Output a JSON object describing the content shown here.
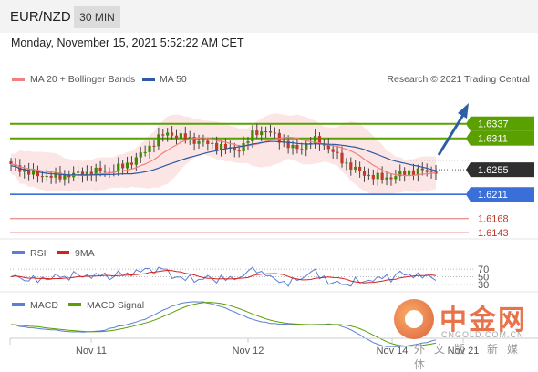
{
  "header": {
    "symbol": "EUR/NZD",
    "timeframe": "30 MIN"
  },
  "datetime": "Monday, November 15, 2021 5:52:22 AM CET",
  "legend": {
    "ma20_label": "MA 20 + Bollinger Bands",
    "ma50_label": "MA 50",
    "credit": "Research © 2021 Trading Central"
  },
  "rsi_legend": {
    "rsi_label": "RSI",
    "ma_label": "9MA"
  },
  "macd_legend": {
    "macd_label": "MACD",
    "signal_label": "MACD Signal"
  },
  "watermark": {
    "name": "中金网",
    "url": "CNGOLD.COM.CN",
    "sub": "外文版·新媒体"
  },
  "colors": {
    "green": "#5aa000",
    "blue": "#3a6fd8",
    "red": "#d62020",
    "dark": "#2f2f2f",
    "arrow": "#2e5fa3"
  },
  "chart_data": {
    "type": "candlestick",
    "x_ticks": [
      "Nov 11",
      "Nov 12",
      "Nov 14",
      "Nov 21"
    ],
    "current_price": "1.6255",
    "levels": [
      {
        "value": "1.6337",
        "style": "resistance"
      },
      {
        "value": "1.6311",
        "style": "resistance"
      },
      {
        "value": "1.6211",
        "style": "support"
      },
      {
        "value": "1.6168",
        "style": "support"
      },
      {
        "value": "1.6143",
        "style": "support"
      }
    ],
    "ylim": [
      1.6135,
      1.6395
    ],
    "price_path": [
      1.6262,
      1.6258,
      1.625,
      1.6246,
      1.6244,
      1.6242,
      1.6244,
      1.6246,
      1.6248,
      1.625,
      1.6252,
      1.6254,
      1.6256,
      1.6262,
      1.627,
      1.6282,
      1.6296,
      1.6312,
      1.632,
      1.6316,
      1.6312,
      1.6308,
      1.6304,
      1.63,
      1.6298,
      1.6292,
      1.629,
      1.63,
      1.6322,
      1.6324,
      1.632,
      1.631,
      1.6296,
      1.6292,
      1.63,
      1.6308,
      1.6302,
      1.6288,
      1.6274,
      1.6262,
      1.6252,
      1.6246,
      1.6242,
      1.624,
      1.6242,
      1.6248,
      1.6252,
      1.6253,
      1.6252,
      1.6254
    ],
    "rsi": {
      "levels": [
        70,
        50,
        30
      ]
    }
  }
}
